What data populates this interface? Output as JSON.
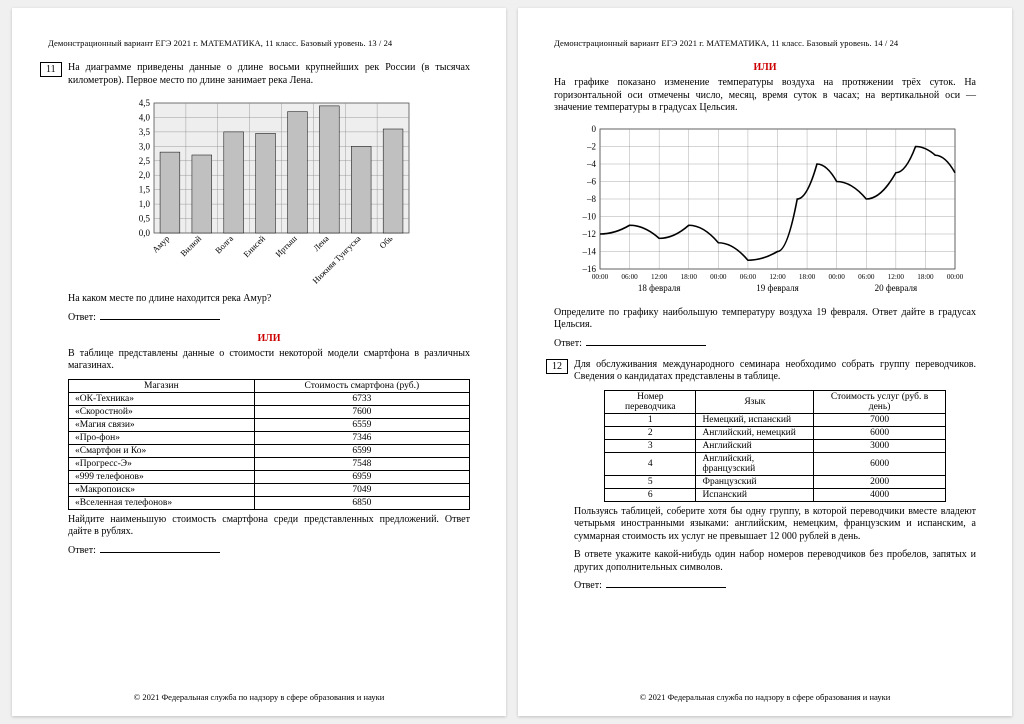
{
  "left": {
    "header": "Демонстрационный вариант ЕГЭ 2021 г.     МАТЕМАТИКА, 11 класс. Базовый уровень.     13 / 24",
    "problem_num": "11",
    "text1": "На диаграмме приведены данные о длине восьми крупнейших рек России (в тысячах километров). Первое место по длине занимает река Лена.",
    "chart": {
      "categories": [
        "Амур",
        "Вилюй",
        "Волга",
        "Енисей",
        "Иртыш",
        "Лена",
        "Нижняя Тунгуска",
        "Обь"
      ],
      "values": [
        2.8,
        2.7,
        3.5,
        3.45,
        4.2,
        4.4,
        3.0,
        3.6
      ],
      "ylim": [
        0,
        4.5
      ],
      "ytick_step": 0.5,
      "bar_fill": "#c0c0c0",
      "grid_color": "#888",
      "bg_color": "#eee"
    },
    "q1": "На каком месте по длине находится река Амур?",
    "ans_label": "Ответ:",
    "or": "ИЛИ",
    "text2": "В таблице представлены данные о стоимости некоторой модели смартфона в различных магазинах.",
    "table": {
      "columns": [
        "Магазин",
        "Стоимость смартфона (руб.)"
      ],
      "rows": [
        [
          "«ОК-Техника»",
          "6733"
        ],
        [
          "«Скоростной»",
          "7600"
        ],
        [
          "«Магия связи»",
          "6559"
        ],
        [
          "«Про-фон»",
          "7346"
        ],
        [
          "«Смартфон и Ко»",
          "6599"
        ],
        [
          "«Прогресс-Э»",
          "7548"
        ],
        [
          "«999 телефонов»",
          "6959"
        ],
        [
          "«Макропоиск»",
          "7049"
        ],
        [
          "«Вселенная телефонов»",
          "6850"
        ]
      ]
    },
    "q2": "Найдите наименьшую стоимость смартфона среди представленных предложений. Ответ дайте в рублях.",
    "footer": "© 2021 Федеральная служба по надзору в сфере образования и науки"
  },
  "right": {
    "header": "Демонстрационный вариант ЕГЭ 2021 г.     МАТЕМАТИКА, 11 класс. Базовый уровень.     14 / 24",
    "or": "ИЛИ",
    "text1": "На графике показано изменение температуры воздуха на протяжении трёх суток. На горизонтальной оси отмечены число, месяц, время суток в часах; на вертикальной оси — значение температуры в градусах Цельсия.",
    "chart": {
      "ylim": [
        -16,
        0
      ],
      "ytick_step": 2,
      "x_labels_top": [
        "00:00",
        "06:00",
        "12:00",
        "18:00",
        "00:00",
        "06:00",
        "12:00",
        "18:00",
        "00:00",
        "06:00",
        "12:00",
        "18:00",
        "00:00"
      ],
      "x_labels_bottom": [
        "18 февраля",
        "19 февраля",
        "20 февраля"
      ],
      "points": [
        [
          0,
          -12
        ],
        [
          6,
          -11
        ],
        [
          12,
          -12.5
        ],
        [
          18,
          -11
        ],
        [
          24,
          -13
        ],
        [
          30,
          -15
        ],
        [
          36,
          -14
        ],
        [
          40,
          -8
        ],
        [
          44,
          -4
        ],
        [
          48,
          -6
        ],
        [
          54,
          -8
        ],
        [
          60,
          -5
        ],
        [
          64,
          -2
        ],
        [
          68,
          -3
        ],
        [
          72,
          -5
        ]
      ],
      "grid_color": "#888",
      "line_color": "#000"
    },
    "q1": "Определите по графику наибольшую температуру воздуха 19 февраля. Ответ дайте в градусах Цельсия.",
    "ans_label": "Ответ:",
    "problem_num": "12",
    "text2": "Для обслуживания международного семинара необходимо собрать группу переводчиков. Сведения о кандидатах представлены в таблице.",
    "table": {
      "columns": [
        "Номер переводчика",
        "Язык",
        "Стоимость услуг (руб. в день)"
      ],
      "rows": [
        [
          "1",
          "Немецкий, испанский",
          "7000"
        ],
        [
          "2",
          "Английский, немецкий",
          "6000"
        ],
        [
          "3",
          "Английский",
          "3000"
        ],
        [
          "4",
          "Английский, французский",
          "6000"
        ],
        [
          "5",
          "Французский",
          "2000"
        ],
        [
          "6",
          "Испанский",
          "4000"
        ]
      ]
    },
    "text3": "Пользуясь таблицей, соберите хотя бы одну группу, в которой переводчики вместе владеют четырьмя иностранными языками: английским, немецким, французским и испанским, а суммарная стоимость их услуг не превышает 12 000 рублей в день.",
    "text4": "В ответе укажите какой-нибудь один набор номеров переводчиков без пробелов, запятых и других дополнительных символов.",
    "footer": "© 2021 Федеральная служба по надзору в сфере образования и науки"
  }
}
